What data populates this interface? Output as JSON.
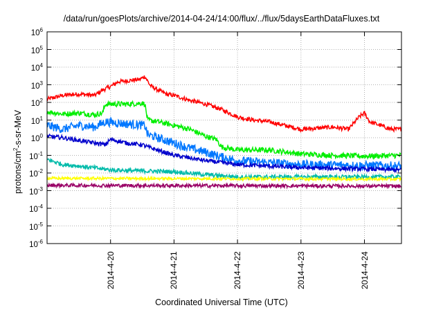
{
  "chart_data": {
    "type": "line",
    "title": "/data/run/goesPlots/archive/2014-04-24/14:00/flux/../flux/5daysEarthDataFluxes.txt",
    "xlabel": "Coordinated Universal Time (UTC)",
    "ylabel": {
      "prefix": "protons/cm",
      "sup": "2",
      "suffix": "-s-sr-MeV"
    },
    "yscale": "log",
    "ylim": [
      1e-06,
      1000000.0
    ],
    "xlim": [
      "2014-04-19 00:00",
      "2014-04-24 14:00"
    ],
    "grid": true,
    "y_ticks": [
      {
        "value": 1e-06,
        "label": "10",
        "exp": "-6"
      },
      {
        "value": 1e-05,
        "label": "10",
        "exp": "-5"
      },
      {
        "value": 0.0001,
        "label": "10",
        "exp": "-4"
      },
      {
        "value": 0.001,
        "label": "10",
        "exp": "-3"
      },
      {
        "value": 0.01,
        "label": "10",
        "exp": "-2"
      },
      {
        "value": 0.1,
        "label": "10",
        "exp": "-1"
      },
      {
        "value": 1,
        "label": "10",
        "exp": "0"
      },
      {
        "value": 10,
        "label": "10",
        "exp": "1"
      },
      {
        "value": 100,
        "label": "10",
        "exp": "2"
      },
      {
        "value": 1000,
        "label": "10",
        "exp": "3"
      },
      {
        "value": 10000,
        "label": "10",
        "exp": "4"
      },
      {
        "value": 100000,
        "label": "10",
        "exp": "5"
      },
      {
        "value": 1000000,
        "label": "10",
        "exp": "6"
      }
    ],
    "x_ticks": [
      {
        "value": "2014-04-20 00:00",
        "label": "2014-4-20"
      },
      {
        "value": "2014-04-21 00:00",
        "label": "2014-4-21"
      },
      {
        "value": "2014-04-22 00:00",
        "label": "2014-4-22"
      },
      {
        "value": "2014-04-23 00:00",
        "label": "2014-4-23"
      },
      {
        "value": "2014-04-24 00:00",
        "label": "2014-4-24"
      }
    ],
    "series": [
      {
        "color": "#ff0000",
        "noise": 0.12,
        "points": [
          [
            "2014-04-19 00:00",
            150
          ],
          [
            "2014-04-19 06:00",
            250
          ],
          [
            "2014-04-19 12:00",
            300
          ],
          [
            "2014-04-19 18:00",
            250
          ],
          [
            "2014-04-19 21:00",
            500
          ],
          [
            "2014-04-20 00:00",
            800
          ],
          [
            "2014-04-20 03:00",
            1500
          ],
          [
            "2014-04-20 08:00",
            1800
          ],
          [
            "2014-04-20 11:00",
            2000
          ],
          [
            "2014-04-20 13:00",
            3000
          ],
          [
            "2014-04-20 15:00",
            900
          ],
          [
            "2014-04-20 18:00",
            500
          ],
          [
            "2014-04-20 21:00",
            300
          ],
          [
            "2014-04-21 00:00",
            250
          ],
          [
            "2014-04-21 06:00",
            130
          ],
          [
            "2014-04-21 12:00",
            80
          ],
          [
            "2014-04-21 18:00",
            40
          ],
          [
            "2014-04-22 00:00",
            15
          ],
          [
            "2014-04-22 06:00",
            10
          ],
          [
            "2014-04-22 12:00",
            8
          ],
          [
            "2014-04-23 00:00",
            3
          ],
          [
            "2014-04-23 12:00",
            4
          ],
          [
            "2014-04-23 18:00",
            3
          ],
          [
            "2014-04-23 22:00",
            15
          ],
          [
            "2014-04-24 00:00",
            25
          ],
          [
            "2014-04-24 02:00",
            8
          ],
          [
            "2014-04-24 06:00",
            5
          ],
          [
            "2014-04-24 10:00",
            3
          ],
          [
            "2014-04-24 14:00",
            3
          ]
        ]
      },
      {
        "color": "#00ee00",
        "noise": 0.15,
        "points": [
          [
            "2014-04-19 00:00",
            30
          ],
          [
            "2014-04-19 06:00",
            22
          ],
          [
            "2014-04-19 12:00",
            25
          ],
          [
            "2014-04-19 18:00",
            20
          ],
          [
            "2014-04-19 21:00",
            25
          ],
          [
            "2014-04-19 22:00",
            80
          ],
          [
            "2014-04-20 06:00",
            80
          ],
          [
            "2014-04-20 12:00",
            90
          ],
          [
            "2014-04-20 13:00",
            80
          ],
          [
            "2014-04-20 14:00",
            10
          ],
          [
            "2014-04-20 18:00",
            8
          ],
          [
            "2014-04-21 00:00",
            5
          ],
          [
            "2014-04-21 06:00",
            3
          ],
          [
            "2014-04-21 12:00",
            1.2
          ],
          [
            "2014-04-21 16:00",
            0.8
          ],
          [
            "2014-04-21 18:00",
            0.3
          ],
          [
            "2014-04-22 00:00",
            0.2
          ],
          [
            "2014-04-22 12:00",
            0.2
          ],
          [
            "2014-04-23 00:00",
            0.12
          ],
          [
            "2014-04-23 12:00",
            0.1
          ],
          [
            "2014-04-24 00:00",
            0.09
          ],
          [
            "2014-04-24 14:00",
            0.1
          ]
        ]
      },
      {
        "color": "#0077ff",
        "noise": 0.25,
        "points": [
          [
            "2014-04-19 00:00",
            5
          ],
          [
            "2014-04-19 06:00",
            3
          ],
          [
            "2014-04-19 12:00",
            5
          ],
          [
            "2014-04-19 18:00",
            4
          ],
          [
            "2014-04-19 22:00",
            8
          ],
          [
            "2014-04-20 06:00",
            6
          ],
          [
            "2014-04-20 13:00",
            5
          ],
          [
            "2014-04-20 14:00",
            1.5
          ],
          [
            "2014-04-21 00:00",
            0.5
          ],
          [
            "2014-04-21 06:00",
            0.25
          ],
          [
            "2014-04-21 12:00",
            0.15
          ],
          [
            "2014-04-21 18:00",
            0.08
          ],
          [
            "2014-04-22 00:00",
            0.05
          ],
          [
            "2014-04-23 00:00",
            0.03
          ],
          [
            "2014-04-24 14:00",
            0.025
          ]
        ]
      },
      {
        "color": "#0000cc",
        "noise": 0.12,
        "points": [
          [
            "2014-04-19 00:00",
            1.2
          ],
          [
            "2014-04-19 06:00",
            1
          ],
          [
            "2014-04-19 12:00",
            0.7
          ],
          [
            "2014-04-19 18:00",
            0.5
          ],
          [
            "2014-04-19 22:00",
            0.4
          ],
          [
            "2014-04-20 00:00",
            0.8
          ],
          [
            "2014-04-20 06:00",
            0.5
          ],
          [
            "2014-04-20 12:00",
            0.4
          ],
          [
            "2014-04-20 14:00",
            0.3
          ],
          [
            "2014-04-21 00:00",
            0.1
          ],
          [
            "2014-04-21 12:00",
            0.05
          ],
          [
            "2014-04-22 00:00",
            0.03
          ],
          [
            "2014-04-23 00:00",
            0.02
          ],
          [
            "2014-04-24 14:00",
            0.015
          ]
        ]
      },
      {
        "color": "#00bbaa",
        "noise": 0.12,
        "points": [
          [
            "2014-04-19 00:00",
            0.06
          ],
          [
            "2014-04-19 06:00",
            0.03
          ],
          [
            "2014-04-19 12:00",
            0.025
          ],
          [
            "2014-04-20 00:00",
            0.015
          ],
          [
            "2014-04-20 12:00",
            0.013
          ],
          [
            "2014-04-21 00:00",
            0.012
          ],
          [
            "2014-04-21 12:00",
            0.008
          ],
          [
            "2014-04-22 00:00",
            0.006
          ],
          [
            "2014-04-24 14:00",
            0.006
          ]
        ]
      },
      {
        "color": "#ffff00",
        "noise": 0.08,
        "points": [
          [
            "2014-04-19 00:00",
            0.005
          ],
          [
            "2014-04-24 14:00",
            0.0045
          ]
        ]
      },
      {
        "color": "#990066",
        "noise": 0.1,
        "points": [
          [
            "2014-04-19 00:00",
            0.002
          ],
          [
            "2014-04-24 14:00",
            0.0018
          ]
        ]
      }
    ]
  }
}
